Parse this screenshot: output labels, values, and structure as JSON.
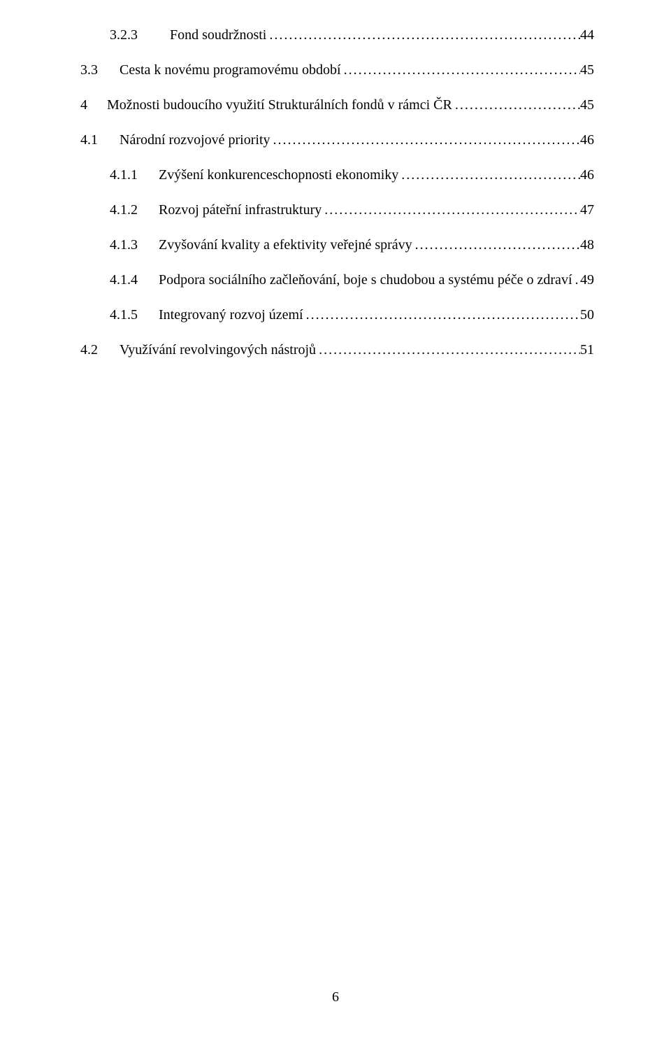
{
  "colors": {
    "background": "#ffffff",
    "text": "#000000"
  },
  "typography": {
    "family": "Times New Roman",
    "size_pt": 12
  },
  "page_number": "6",
  "toc": [
    {
      "level": "lvl-2",
      "num": "3.2.3",
      "title": "Fond soudržnosti",
      "page": "44"
    },
    {
      "level": "lvl-1",
      "num": "3.3",
      "title": "Cesta k novému programovému období",
      "page": "45"
    },
    {
      "level": "lvl-0",
      "num": "4",
      "title": "Možnosti budoucího využití Strukturálních fondů v rámci ČR",
      "page": "45"
    },
    {
      "level": "lvl-1",
      "num": "4.1",
      "title": "Národní rozvojové priority",
      "page": "46"
    },
    {
      "level": "lvl-2b",
      "num": "4.1.1",
      "title": "Zvýšení konkurenceschopnosti ekonomiky",
      "page": "46"
    },
    {
      "level": "lvl-2b",
      "num": "4.1.2",
      "title": "Rozvoj páteřní infrastruktury",
      "page": "47"
    },
    {
      "level": "lvl-2b",
      "num": "4.1.3",
      "title": "Zvyšování kvality a efektivity veřejné správy",
      "page": "48"
    },
    {
      "level": "lvl-2b",
      "num": "4.1.4",
      "title": "Podpora sociálního začleňování, boje s chudobou a systému péče o zdraví",
      "page": "49"
    },
    {
      "level": "lvl-2b",
      "num": "4.1.5",
      "title": "Integrovaný rozvoj území",
      "page": "50"
    },
    {
      "level": "lvl-1",
      "num": "4.2",
      "title": "Využívání revolvingových nástrojů",
      "page": "51"
    }
  ]
}
